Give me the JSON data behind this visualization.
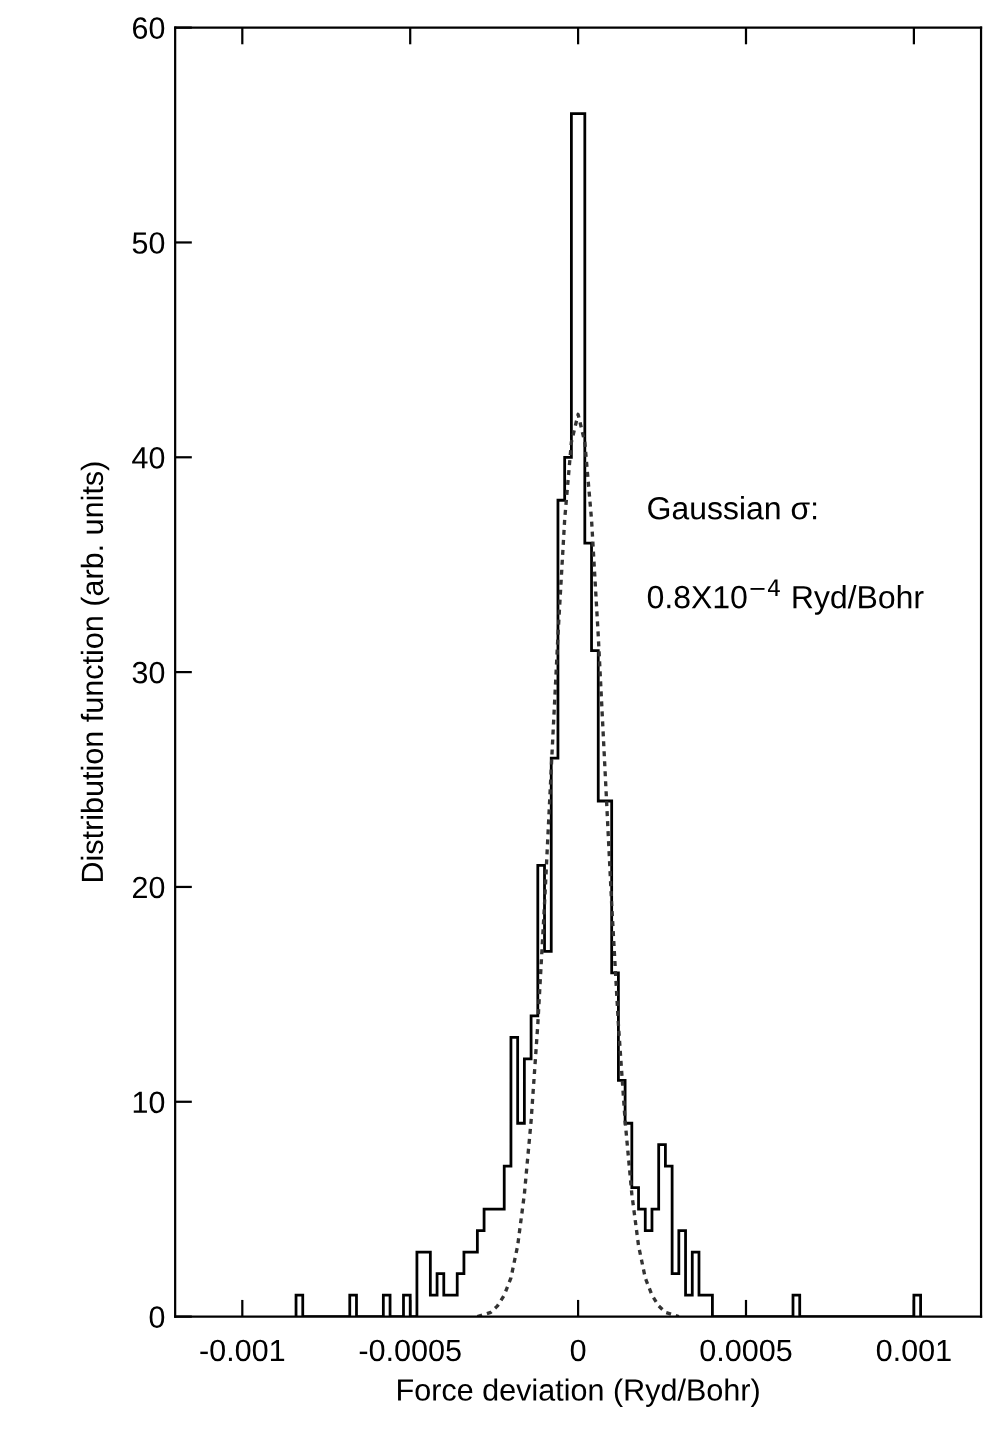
{
  "chart_data": {
    "type": "histogram",
    "xlabel": "Force deviation (Ryd/Bohr)",
    "ylabel": "Distribution function (arb. units)",
    "annotations": [
      "Gaussian σ:",
      "0.8X10$^{−4}$ Ryd/Bohr"
    ],
    "xlim": [
      -0.0012,
      0.0012
    ],
    "xticks": [
      -0.001,
      -0.0005,
      0,
      0.0005,
      0.001
    ],
    "ylim": [
      0,
      60
    ],
    "yticks": [
      0,
      10,
      20,
      30,
      40,
      50,
      60
    ],
    "grid": false,
    "legend": false,
    "series": [
      {
        "type": "histogram",
        "color": "#000000",
        "bins": [
          -0.00084,
          -0.00082,
          -0.0008,
          -0.00078,
          -0.00076,
          -0.00074,
          -0.00072,
          -0.0007,
          -0.00068,
          -0.00066,
          -0.00064,
          -0.00062,
          -0.0006,
          -0.00058,
          -0.00056,
          -0.00054,
          -0.00052,
          -0.0005,
          -0.00048,
          -0.00046,
          -0.00044,
          -0.00042,
          -0.0004,
          -0.00038,
          -0.00036,
          -0.00034,
          -0.00032,
          -0.0003,
          -0.00028,
          -0.00026,
          -0.00024,
          -0.00022,
          -0.0002,
          -0.00018,
          -0.00016,
          -0.00014,
          -0.00012,
          -0.0001,
          -8e-05,
          -6e-05,
          -4e-05,
          -2e-05,
          0,
          2e-05,
          4e-05,
          6e-05,
          8e-05,
          0.0001,
          0.00012,
          0.00014,
          0.00016,
          0.00018,
          0.0002,
          0.00022,
          0.00024,
          0.00026,
          0.00028,
          0.0003,
          0.00032,
          0.00034,
          0.00036,
          0.00038,
          0.0004,
          0.00042,
          0.00044,
          0.00046,
          0.00048,
          0.0005,
          0.00052,
          0.00054,
          0.00056,
          0.00058,
          0.0006,
          0.00062,
          0.00064,
          0.00066,
          0.00068,
          0.0007,
          0.00072,
          0.00074,
          0.00076,
          0.00078,
          0.0008,
          0.00082,
          0.00084,
          0.00086,
          0.00088,
          0.0009,
          0.00092,
          0.00094,
          0.00096,
          0.00098,
          0.001,
          0.00102
        ],
        "values": [
          1,
          0,
          0,
          0,
          0,
          0,
          0,
          0,
          1,
          0,
          0,
          0,
          0,
          1,
          0,
          0,
          1,
          0,
          3,
          3,
          1,
          2,
          1,
          1,
          2,
          3,
          3,
          4,
          5,
          5,
          5,
          7,
          13,
          9,
          12,
          14,
          21,
          17,
          26,
          38,
          40,
          56,
          56,
          36,
          31,
          24,
          24,
          16,
          11,
          9,
          6,
          5,
          4,
          5,
          8,
          7,
          2,
          4,
          1,
          3,
          1,
          1,
          0,
          0,
          0,
          0,
          0,
          0,
          0,
          0,
          0,
          0,
          0,
          0,
          1,
          0,
          0,
          0,
          0,
          0,
          0,
          0,
          0,
          0,
          0,
          0,
          0,
          0,
          0,
          0,
          0,
          0,
          1
        ]
      },
      {
        "type": "line",
        "color": "#333333",
        "line_style": "dotted",
        "x": [
          -0.0003,
          -0.00028,
          -0.00026,
          -0.00024,
          -0.00022,
          -0.0002,
          -0.00018,
          -0.00016,
          -0.00014,
          -0.00012,
          -0.0001,
          -8e-05,
          -6e-05,
          -4e-05,
          -2e-05,
          0,
          2e-05,
          4e-05,
          6e-05,
          8e-05,
          0.0001,
          0.00012,
          0.00014,
          0.00016,
          0.00018,
          0.0002,
          0.00022,
          0.00024,
          0.00026,
          0.00028,
          0.0003
        ],
        "values": [
          0,
          0.1,
          0.2,
          0.5,
          1.0,
          1.8,
          3.3,
          5.7,
          9.1,
          13.6,
          19.2,
          25.5,
          31.7,
          37.1,
          40.7,
          42,
          40.7,
          37.1,
          31.7,
          25.5,
          19.2,
          13.6,
          9.1,
          5.7,
          3.3,
          1.8,
          1.0,
          0.5,
          0.2,
          0.1,
          0
        ]
      }
    ]
  }
}
